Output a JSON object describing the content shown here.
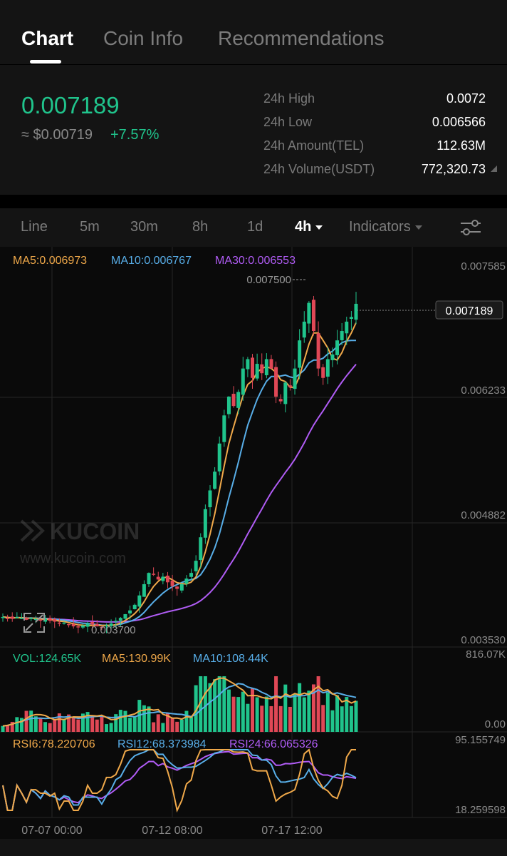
{
  "tabs": [
    {
      "label": "Chart",
      "active": true
    },
    {
      "label": "Coin Info",
      "active": false
    },
    {
      "label": "Recommendations",
      "active": false
    }
  ],
  "price": {
    "last": "0.007189",
    "usd": "≈ $0.00719",
    "change": "+7.57%"
  },
  "stats": [
    {
      "label": "24h High",
      "value": "0.0072"
    },
    {
      "label": "24h Low",
      "value": "0.006566"
    },
    {
      "label": "24h Amount(TEL)",
      "value": "112.63M"
    },
    {
      "label": "24h Volume(USDT)",
      "value": "772,320.73"
    }
  ],
  "toolbar": {
    "intervals": [
      "Line",
      "5m",
      "30m",
      "8h",
      "1d",
      "4h"
    ],
    "selected": "4h",
    "indicators_label": "Indicators"
  },
  "main_chart": {
    "ma5": "MA5:0.006973",
    "ma10": "MA10:0.006767",
    "ma30": "MA30:0.006553",
    "axis_labels": [
      "0.007585",
      "0.006233",
      "0.004882",
      "0.003530"
    ],
    "high_label": "0.007500",
    "low_label": "0.003700",
    "last_label": "0.007189",
    "watermark_brand": "KUCOIN",
    "watermark_url": "www.kucoin.com"
  },
  "volume_chart": {
    "vol": "VOL:124.65K",
    "ma5": "MA5:130.99K",
    "ma10": "MA10:108.44K",
    "axis_labels": [
      "816.07K",
      "0.00"
    ]
  },
  "rsi_chart": {
    "rsi6": "RSI6:78.220706",
    "rsi12": "RSI12:68.373984",
    "rsi24": "RSI24:66.065326",
    "axis_labels": [
      "95.155749",
      "18.259598"
    ]
  },
  "time_labels": [
    "07-07 00:00",
    "07-12 08:00",
    "07-17 12:00"
  ],
  "colors": {
    "up": "#20c48c",
    "down": "#e04856",
    "ma5": "#f0a94a",
    "ma10": "#58aee8",
    "ma30": "#b05cf5"
  },
  "chart_data": {
    "type": "candlestick",
    "price_range": [
      0.00353,
      0.007585
    ],
    "last_price": 0.007189,
    "high": 0.0075,
    "low": 0.0037,
    "close_series": [
      0.00385,
      0.00384,
      0.00383,
      0.00385,
      0.00384,
      0.00382,
      0.00384,
      0.00383,
      0.00381,
      0.00383,
      0.00381,
      0.0038,
      0.00378,
      0.00379,
      0.00377,
      0.00375,
      0.00374,
      0.00376,
      0.00378,
      0.00377,
      0.00375,
      0.00374,
      0.00376,
      0.00378,
      0.00381,
      0.00384,
      0.00388,
      0.00392,
      0.00398,
      0.00408,
      0.0042,
      0.00432,
      0.0043,
      0.00425,
      0.00428,
      0.00422,
      0.00418,
      0.00415,
      0.0042,
      0.00426,
      0.00432,
      0.00445,
      0.0047,
      0.005,
      0.0052,
      0.0054,
      0.0057,
      0.006,
      0.0062,
      0.0061,
      0.00625,
      0.0065,
      0.0066,
      0.0064,
      0.00655,
      0.00645,
      0.0066,
      0.0065,
      0.0062,
      0.00615,
      0.00635,
      0.0063,
      0.0065,
      0.0068,
      0.007,
      0.0072,
      0.0069,
      0.0065,
      0.0064,
      0.0066,
      0.00665,
      0.0068,
      0.0069,
      0.007,
      0.00705,
      0.00719
    ],
    "volume_range": [
      0,
      816070
    ],
    "rsi_range": [
      18.259598,
      95.155749
    ]
  }
}
